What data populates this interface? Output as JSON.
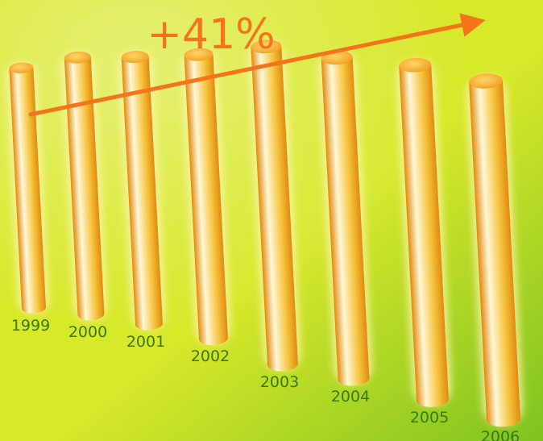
{
  "chart_data": {
    "type": "bar",
    "title": "",
    "xlabel": "",
    "ylabel": "",
    "categories": [
      "1999",
      "2000",
      "2001",
      "2002",
      "2003",
      "2004",
      "2005",
      "2006"
    ],
    "values": [
      71,
      76,
      79,
      84,
      94,
      95,
      99,
      100
    ],
    "ylim": [
      0,
      100
    ],
    "annotation": "+41%",
    "trend_arrow": true,
    "grid": false,
    "colors": {
      "background_light": "#d8e82a",
      "background_dark": "#7fc320",
      "bar_light": "#fff7d6",
      "bar_mid": "#f6c23a",
      "bar_dark": "#e08a10",
      "bar_top": "#f19a1c",
      "glow": "#fff4a8",
      "arrow": "#f4741c",
      "annotation_text": "#f4741c",
      "year_text": "#3a7a12"
    }
  }
}
